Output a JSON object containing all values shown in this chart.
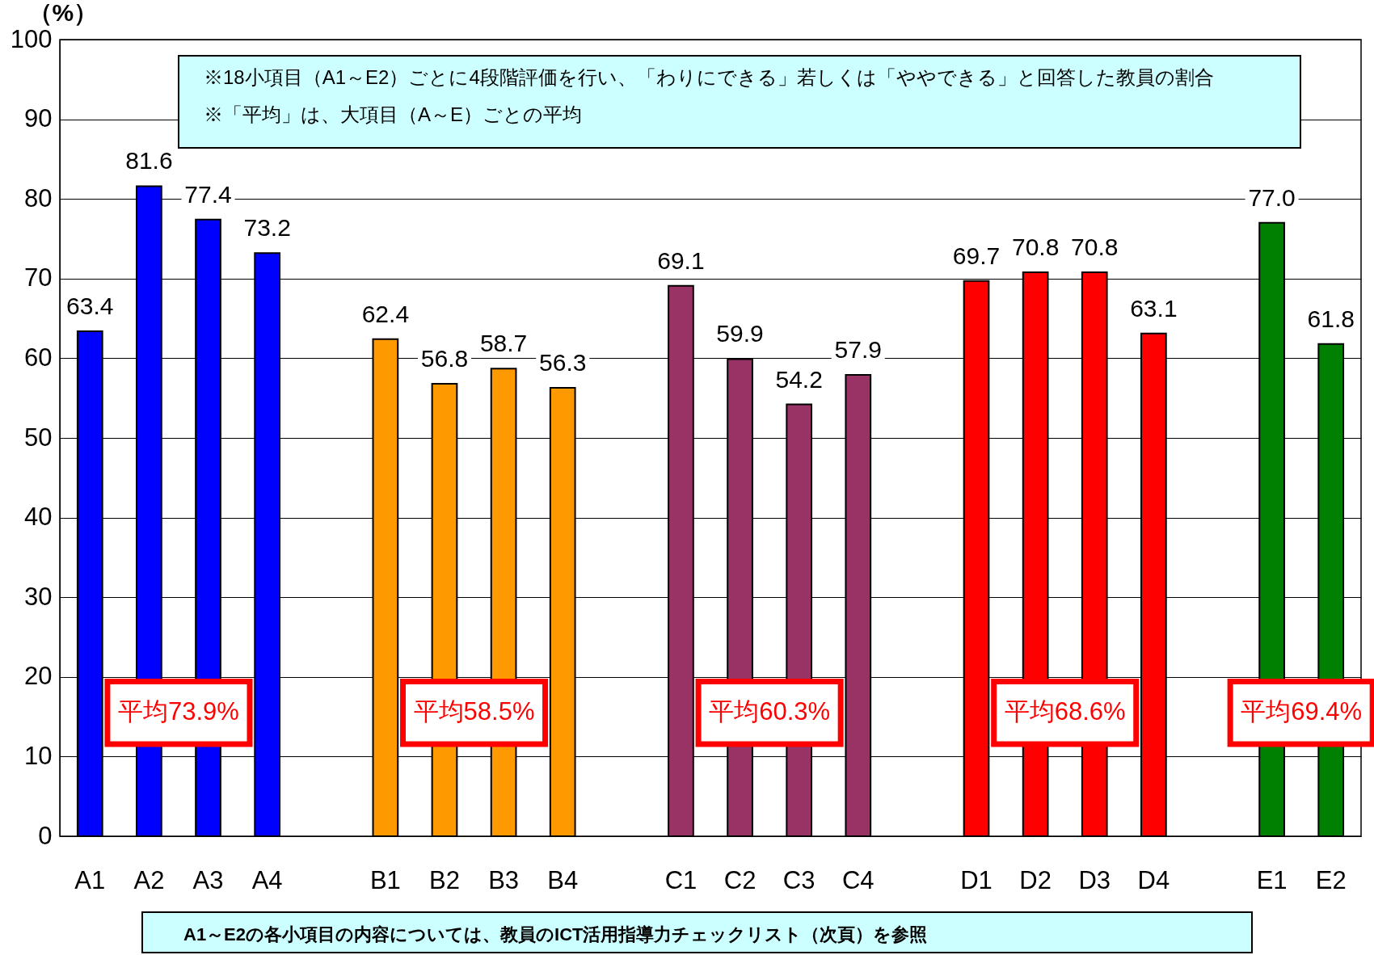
{
  "chart_data": {
    "type": "bar",
    "ylabel": "（%）",
    "categories": [
      "A1",
      "A2",
      "A3",
      "A4",
      null,
      "B1",
      "B2",
      "B3",
      "B4",
      null,
      "C1",
      "C2",
      "C3",
      "C4",
      null,
      "D1",
      "D2",
      "D3",
      "D4",
      null,
      "E1",
      "E2"
    ],
    "values": [
      63.4,
      81.6,
      77.4,
      73.2,
      null,
      62.4,
      56.8,
      58.7,
      56.3,
      null,
      69.1,
      59.9,
      54.2,
      57.9,
      null,
      69.7,
      70.8,
      70.8,
      63.1,
      null,
      77.0,
      61.8
    ],
    "value_labels": [
      "63.4",
      "81.6",
      "77.4",
      "73.2",
      null,
      "62.4",
      "56.8",
      "58.7",
      "56.3",
      null,
      "69.1",
      "59.9",
      "54.2",
      "57.9",
      null,
      "69.7",
      "70.8",
      "70.8",
      "63.1",
      null,
      "77.0",
      "61.8"
    ],
    "colors": [
      "#0000ff",
      "#0000ff",
      "#0000ff",
      "#0000ff",
      null,
      "#ff9900",
      "#ff9900",
      "#ff9900",
      "#ff9900",
      null,
      "#993366",
      "#993366",
      "#993366",
      "#993366",
      null,
      "#ff0000",
      "#ff0000",
      "#ff0000",
      "#ff0000",
      null,
      "#008000",
      "#008000"
    ],
    "ylim": [
      0,
      100
    ],
    "yticks": [
      0,
      10,
      20,
      30,
      40,
      50,
      60,
      70,
      80,
      90,
      100
    ],
    "grid": "y",
    "annotations": [
      "※18小項目（A1～E2）ごとに4段階評価を行い、「わりにできる」若しくは「ややできる」と回答した教員の割合",
      "※「平均」は、大項目（A～E）ごとの平均",
      "平均73.9%",
      "平均58.5%",
      "平均60.3%",
      "平均68.6%",
      "平均69.4%",
      "A1～E2の各小項目の内容については、教員のICT活用指導力チェックリスト（次頁）を参照"
    ]
  }
}
